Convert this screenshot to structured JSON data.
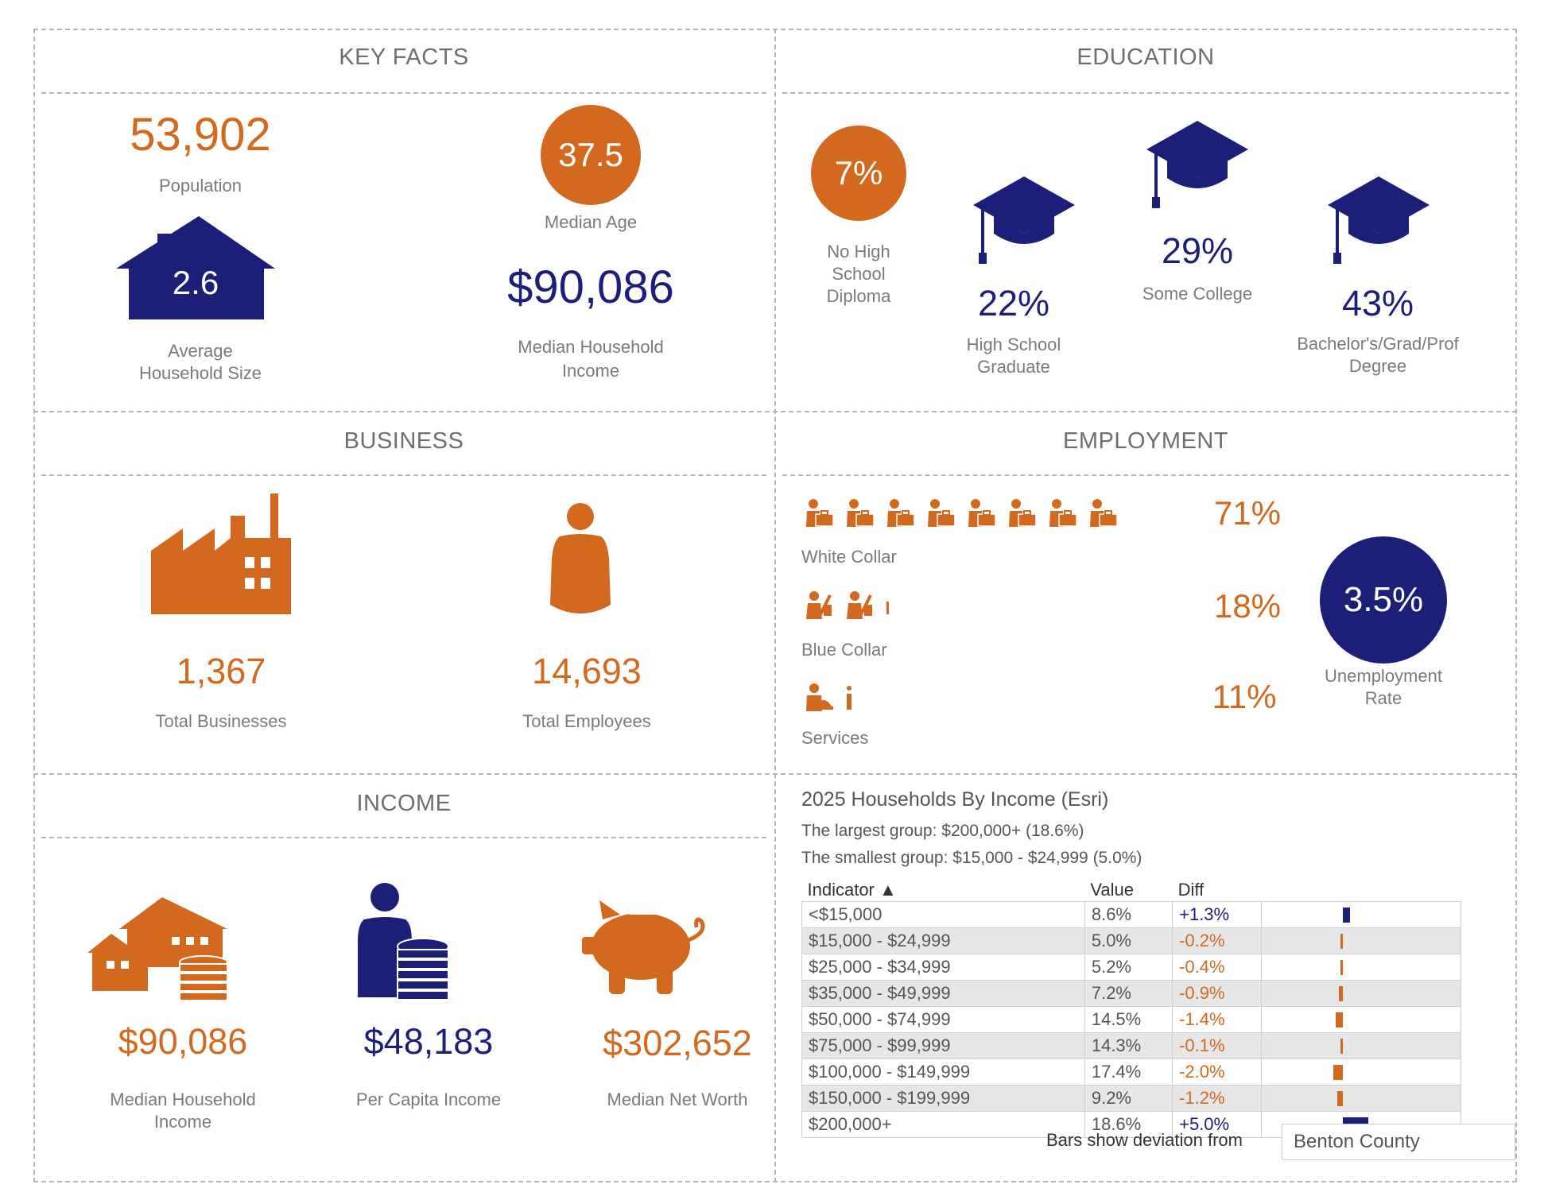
{
  "colors": {
    "orange": "#d2691e",
    "navy": "#1c1f78",
    "grey": "#7a7a7a"
  },
  "key_facts": {
    "title": "KEY FACTS",
    "population_value": "53,902",
    "population_label": "Population",
    "median_age_value": "37.5",
    "median_age_label": "Median Age",
    "household_size_value": "2.6",
    "household_size_label_1": "Average",
    "household_size_label_2": "Household Size",
    "median_income_value": "$90,086",
    "median_income_label_1": "Median Household",
    "median_income_label_2": "Income"
  },
  "education": {
    "title": "EDUCATION",
    "no_hs_value": "7%",
    "no_hs_label_1": "No High",
    "no_hs_label_2": "School",
    "no_hs_label_3": "Diploma",
    "hs_value": "22%",
    "hs_label_1": "High School",
    "hs_label_2": "Graduate",
    "college_value": "29%",
    "college_label": "Some College",
    "bachelor_value": "43%",
    "bachelor_label_1": "Bachelor's/Grad/Prof",
    "bachelor_label_2": "Degree"
  },
  "business": {
    "title": "BUSINESS",
    "businesses_value": "1,367",
    "businesses_label": "Total Businesses",
    "employees_value": "14,693",
    "employees_label": "Total Employees"
  },
  "employment": {
    "title": "EMPLOYMENT",
    "white_collar_value": "71%",
    "white_collar_label": "White Collar",
    "blue_collar_value": "18%",
    "blue_collar_label": "Blue Collar",
    "services_value": "11%",
    "services_label": "Services",
    "unemployment_value": "3.5%",
    "unemployment_label_1": "Unemployment",
    "unemployment_label_2": "Rate"
  },
  "income": {
    "title": "INCOME",
    "median_hh_value": "$90,086",
    "median_hh_label_1": "Median Household",
    "median_hh_label_2": "Income",
    "per_capita_value": "$48,183",
    "per_capita_label": "Per Capita Income",
    "net_worth_value": "$302,652",
    "net_worth_label": "Median Net Worth"
  },
  "households": {
    "title": "2025 Households By Income (Esri)",
    "largest": "The largest group: $200,000+ (18.6%)",
    "smallest": "The smallest group: $15,000 - $24,999 (5.0%)",
    "col_indicator": "Indicator ▲",
    "col_value": "Value",
    "col_diff": "Diff",
    "rows": [
      {
        "indicator": "<$15,000",
        "value": "8.6%",
        "diff": "+1.3%",
        "diff_num": 1.3
      },
      {
        "indicator": "$15,000 - $24,999",
        "value": "5.0%",
        "diff": "-0.2%",
        "diff_num": -0.2
      },
      {
        "indicator": "$25,000 - $34,999",
        "value": "5.2%",
        "diff": "-0.4%",
        "diff_num": -0.4
      },
      {
        "indicator": "$35,000 - $49,999",
        "value": "7.2%",
        "diff": "-0.9%",
        "diff_num": -0.9
      },
      {
        "indicator": "$50,000 - $74,999",
        "value": "14.5%",
        "diff": "-1.4%",
        "diff_num": -1.4
      },
      {
        "indicator": "$75,000 - $99,999",
        "value": "14.3%",
        "diff": "-0.1%",
        "diff_num": -0.1
      },
      {
        "indicator": "$100,000 - $149,999",
        "value": "17.4%",
        "diff": "-2.0%",
        "diff_num": -2.0
      },
      {
        "indicator": "$150,000 - $199,999",
        "value": "9.2%",
        "diff": "-1.2%",
        "diff_num": -1.2
      },
      {
        "indicator": "$200,000+",
        "value": "18.6%",
        "diff": "+5.0%",
        "diff_num": 5.0
      }
    ],
    "deviation_label": "Bars show deviation from",
    "deviation_select": "Benton County"
  }
}
